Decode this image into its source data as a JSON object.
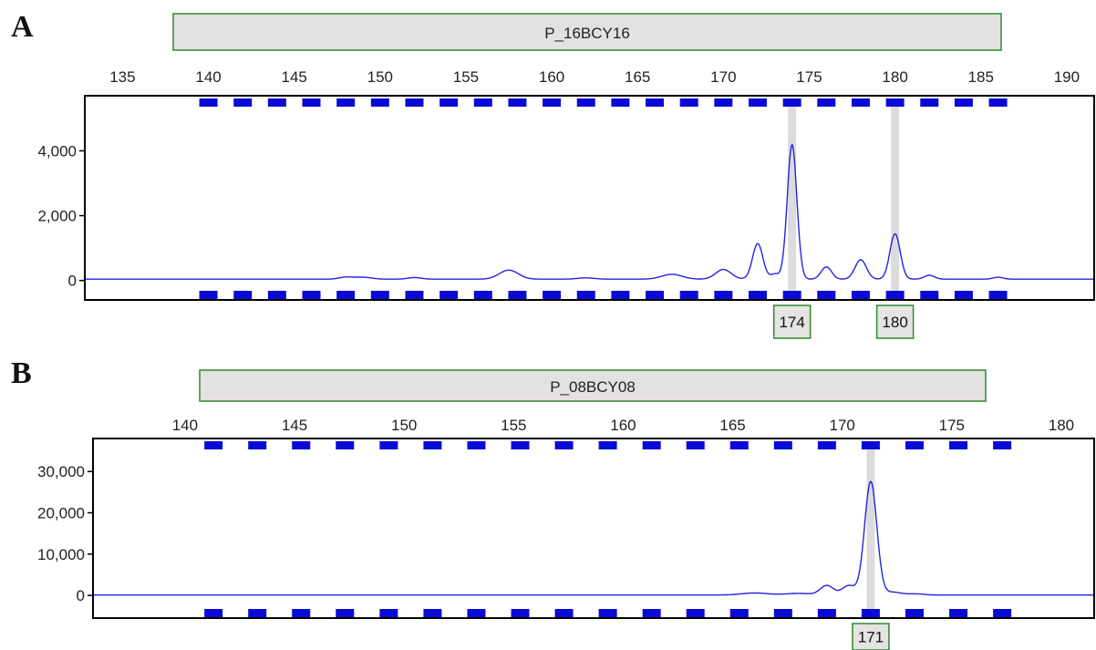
{
  "chart_data": [
    {
      "type": "line",
      "panel": "A",
      "marker": "P_16BCY16",
      "xlim": [
        132.8,
        191.6
      ],
      "ylim": [
        -600,
        5700
      ],
      "x_ticks": [
        135,
        140,
        145,
        150,
        155,
        160,
        165,
        170,
        175,
        180,
        185,
        190
      ],
      "y_ticks": [
        {
          "value": 0,
          "label": "0"
        },
        {
          "value": 2000,
          "label": "2,000"
        },
        {
          "value": 4000,
          "label": "4,000"
        }
      ],
      "bins": [
        140.0,
        142.0,
        144.0,
        146.0,
        148.0,
        150.0,
        152.0,
        154.0,
        156.0,
        158.0,
        160.0,
        162.0,
        164.0,
        166.0,
        168.0,
        170.0,
        172.0,
        174.0,
        176.0,
        178.0,
        180.0,
        182.0,
        184.0,
        186.0
      ],
      "bins_range": [
        139.7,
        186.6
      ],
      "alleles": [
        {
          "x": 174,
          "label": "174"
        },
        {
          "x": 180,
          "label": "180"
        }
      ],
      "series": [
        {
          "color": "#2424e0",
          "baseline": 40,
          "peaks": [
            {
              "x": 148.0,
              "height": 60,
              "width": 0.4
            },
            {
              "x": 149.0,
              "height": 60,
              "width": 0.5
            },
            {
              "x": 152.0,
              "height": 50,
              "width": 0.4
            },
            {
              "x": 157.5,
              "height": 280,
              "width": 0.55
            },
            {
              "x": 162.0,
              "height": 40,
              "width": 0.5
            },
            {
              "x": 167.0,
              "height": 150,
              "width": 0.6
            },
            {
              "x": 170.0,
              "height": 300,
              "width": 0.45
            },
            {
              "x": 172.0,
              "height": 1100,
              "width": 0.3
            },
            {
              "x": 173.0,
              "height": 160,
              "width": 0.25
            },
            {
              "x": 174.0,
              "height": 4150,
              "width": 0.28
            },
            {
              "x": 176.0,
              "height": 380,
              "width": 0.3
            },
            {
              "x": 178.0,
              "height": 600,
              "width": 0.33
            },
            {
              "x": 180.0,
              "height": 1400,
              "width": 0.3
            },
            {
              "x": 182.0,
              "height": 120,
              "width": 0.3
            },
            {
              "x": 186.0,
              "height": 60,
              "width": 0.3
            }
          ]
        }
      ]
    },
    {
      "type": "line",
      "panel": "B",
      "marker": "P_08BCY08",
      "xlim": [
        135.8,
        181.5
      ],
      "ylim": [
        -5500,
        38000
      ],
      "x_ticks": [
        140,
        145,
        150,
        155,
        160,
        165,
        170,
        175,
        180
      ],
      "y_ticks": [
        {
          "value": 0,
          "label": "0"
        },
        {
          "value": 10000,
          "label": "10,000"
        },
        {
          "value": 20000,
          "label": "20,000"
        },
        {
          "value": 30000,
          "label": "30,000"
        }
      ],
      "bins": [
        141.3,
        143.3,
        145.3,
        147.3,
        149.3,
        151.3,
        153.3,
        155.3,
        157.3,
        159.3,
        161.3,
        163.3,
        165.3,
        167.3,
        169.3,
        171.3,
        173.3,
        175.3,
        177.3
      ],
      "bins_range": [
        140.7,
        177.6
      ],
      "alleles": [
        {
          "x": 171.3,
          "label": "171"
        }
      ],
      "series": [
        {
          "color": "#2424e0",
          "baseline": 80,
          "peaks": [
            {
              "x": 166.0,
              "height": 500,
              "width": 0.6
            },
            {
              "x": 168.0,
              "height": 400,
              "width": 0.6
            },
            {
              "x": 169.3,
              "height": 2300,
              "width": 0.3
            },
            {
              "x": 170.3,
              "height": 2300,
              "width": 0.3
            },
            {
              "x": 171.3,
              "height": 27500,
              "width": 0.28
            },
            {
              "x": 172.3,
              "height": 700,
              "width": 0.35
            },
            {
              "x": 173.3,
              "height": 300,
              "width": 0.4
            }
          ]
        }
      ]
    }
  ]
}
